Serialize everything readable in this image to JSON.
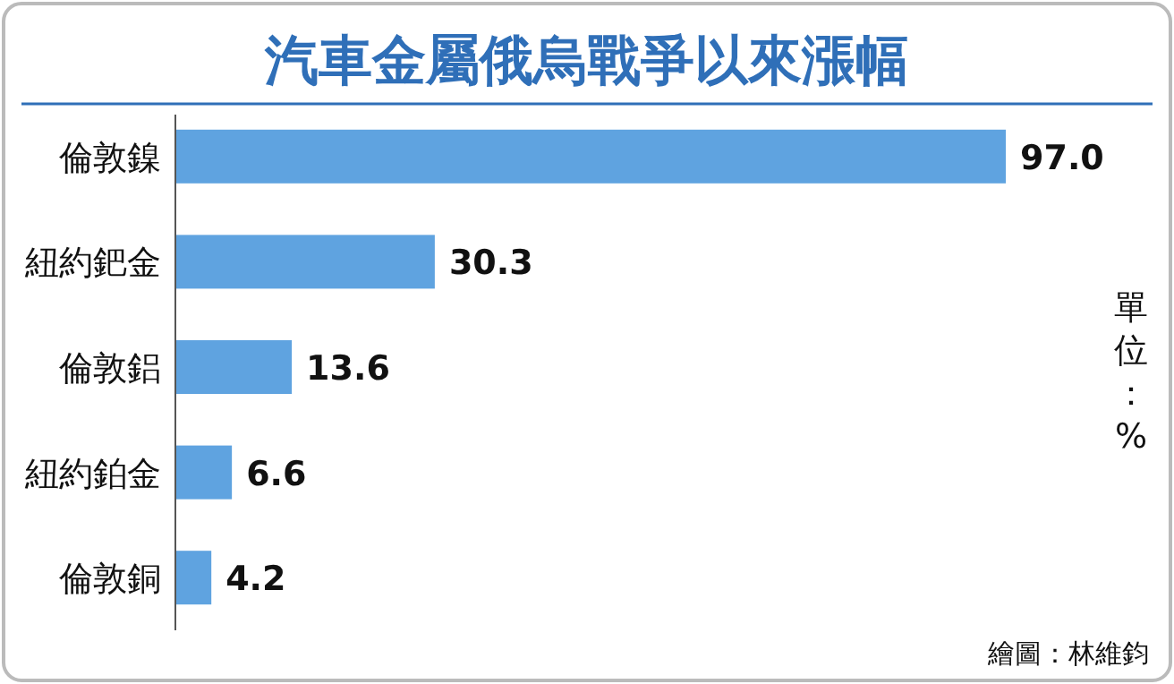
{
  "chart_data": {
    "type": "bar",
    "orientation": "horizontal",
    "title": "汽車金屬俄烏戰爭以來漲幅",
    "categories": [
      "倫敦鎳",
      "紐約鈀金",
      "倫敦鋁",
      "紐約鉑金",
      "倫敦銅"
    ],
    "values": [
      97.0,
      30.3,
      13.6,
      6.6,
      4.2
    ],
    "value_labels": [
      "97.0",
      "30.3",
      "13.6",
      "6.6",
      "4.2"
    ],
    "color": "#5fa3e0",
    "annotations": [
      "單位：%",
      "繪圖：林維鈞"
    ]
  }
}
